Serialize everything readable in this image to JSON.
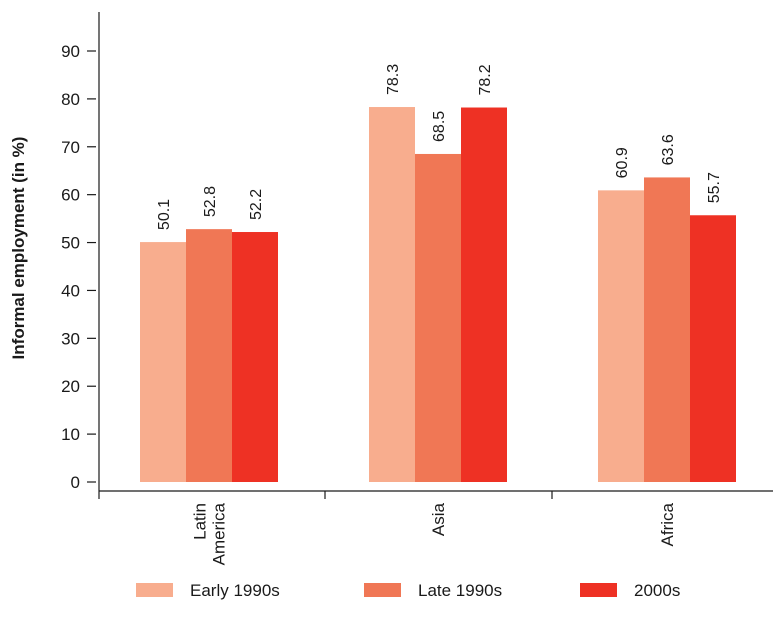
{
  "chart_data": {
    "type": "bar",
    "title": "",
    "xlabel": "",
    "ylabel": "Informal employment (in %)",
    "ylim": [
      0,
      90
    ],
    "yticks": [
      0,
      10,
      20,
      30,
      40,
      50,
      60,
      70,
      80,
      90
    ],
    "grid": false,
    "legend_position": "bottom",
    "categories": [
      [
        "Latin",
        "America"
      ],
      [
        "Asia"
      ],
      [
        "Africa"
      ]
    ],
    "series": [
      {
        "name": "Early 1990s",
        "color": "#f8ad8e",
        "values": [
          50.1,
          78.3,
          60.9
        ]
      },
      {
        "name": "Late 1990s",
        "color": "#f07755",
        "values": [
          52.8,
          68.5,
          63.6
        ]
      },
      {
        "name": "2000s",
        "color": "#ee3124",
        "values": [
          52.2,
          78.2,
          55.7
        ]
      }
    ]
  }
}
